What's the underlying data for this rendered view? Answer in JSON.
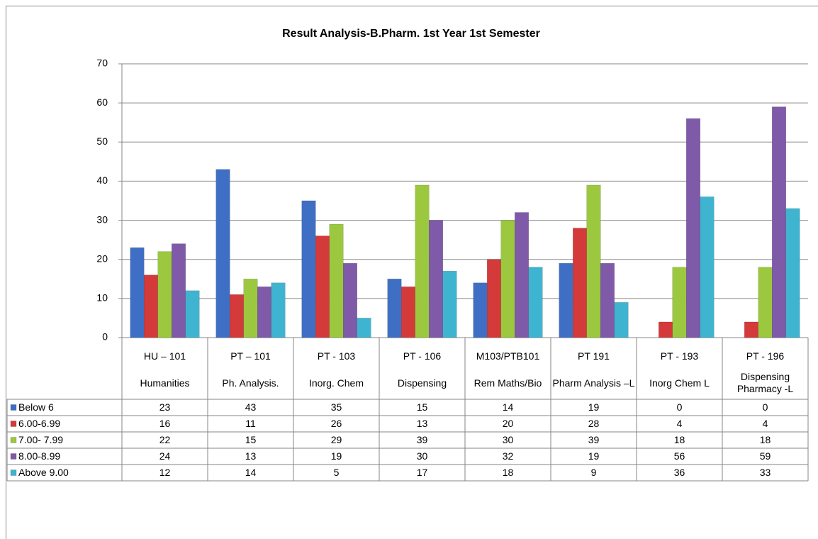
{
  "chart_data": {
    "type": "bar",
    "title": "Result Analysis-B.Pharm. 1st Year 1st Semester",
    "categories": [
      "HU – 101",
      "PT – 101",
      "PT - 103",
      "PT - 106",
      "M103/PTB101",
      "PT 191",
      "PT - 193",
      "PT - 196"
    ],
    "category_names": [
      "Humanities",
      "Ph. Analysis.",
      "Inorg. Chem",
      "Dispensing",
      "Rem Maths/Bio",
      "Pharm Analysis –L",
      "Inorg Chem L",
      "Dispensing Pharmacy -L"
    ],
    "series": [
      {
        "name": "Below 6",
        "color": "#3f6fc4",
        "values": [
          23,
          43,
          35,
          15,
          14,
          19,
          0,
          0
        ]
      },
      {
        "name": "6.00-6.99",
        "color": "#d43a3a",
        "values": [
          16,
          11,
          26,
          13,
          20,
          28,
          4,
          4
        ]
      },
      {
        "name": "7.00- 7.99",
        "color": "#9cc83f",
        "values": [
          22,
          15,
          29,
          39,
          30,
          39,
          18,
          18
        ]
      },
      {
        "name": "8.00-8.99",
        "color": "#7f5aa8",
        "values": [
          24,
          13,
          19,
          30,
          32,
          19,
          56,
          59
        ]
      },
      {
        "name": "Above 9.00",
        "color": "#3fb4d0",
        "values": [
          12,
          14,
          5,
          17,
          18,
          9,
          36,
          33
        ]
      }
    ],
    "ylim": [
      0,
      70
    ],
    "yticks": [
      0,
      10,
      20,
      30,
      40,
      50,
      60,
      70
    ],
    "grid": true,
    "data_table": true
  }
}
